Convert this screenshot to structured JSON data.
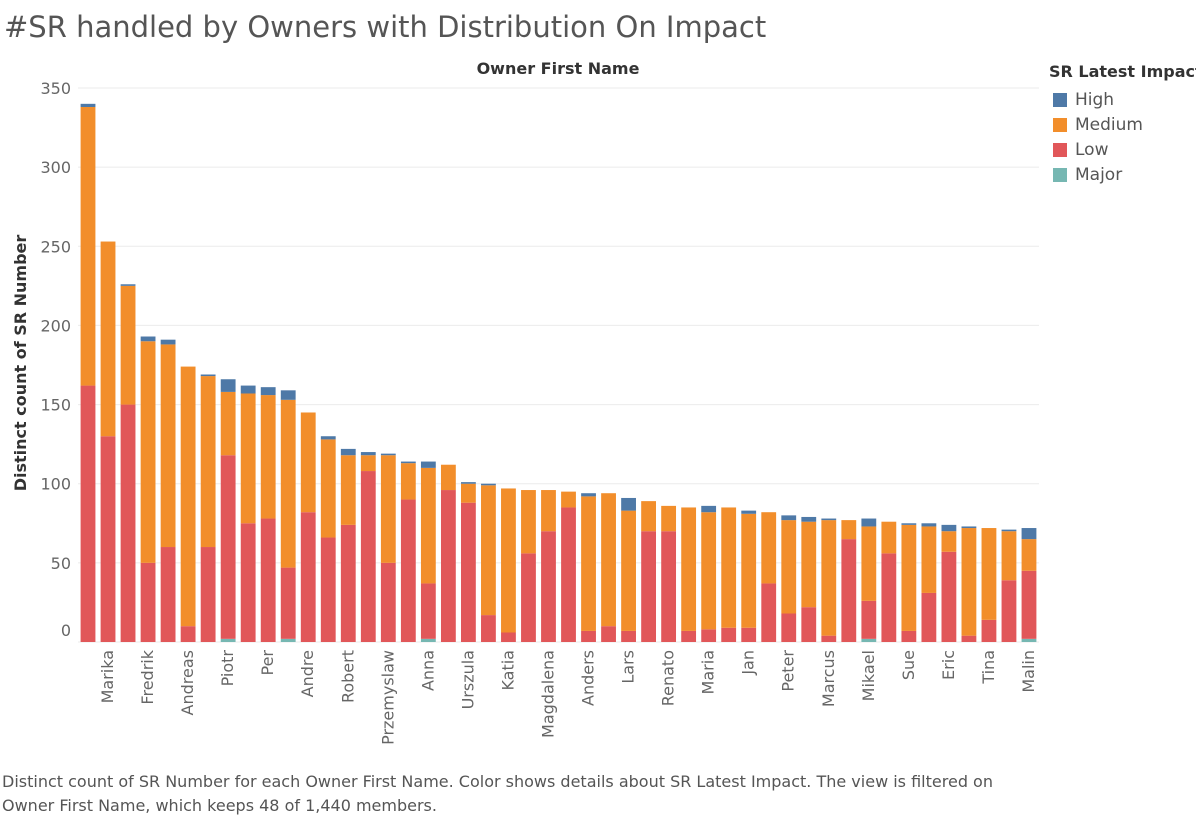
{
  "title": "#SR handled by Owners with Distribution On Impact",
  "caption": "Distinct count of SR Number for each Owner First Name.  Color shows details about SR Latest Impact. The view is filtered on Owner First Name, which keeps 48 of 1,440 members.",
  "legend": {
    "title": "SR Latest Impact",
    "items": [
      {
        "label": "High",
        "color": "#4e79a7"
      },
      {
        "label": "Medium",
        "color": "#f28e2b"
      },
      {
        "label": "Low",
        "color": "#e15759"
      },
      {
        "label": "Major",
        "color": "#76b7b2"
      }
    ]
  },
  "chart_data": {
    "type": "bar",
    "stacked": true,
    "title": "#SR handled by Owners with Distribution On Impact",
    "column_header": "Owner First Name",
    "ylabel": "Distinct count of SR Number",
    "ylim": [
      0,
      350
    ],
    "yticks": [
      0,
      50,
      100,
      150,
      200,
      250,
      300,
      350
    ],
    "grid": true,
    "legend_position": "right",
    "categories": [
      "",
      "Marika",
      "",
      "Fredrik",
      "",
      "Andreas",
      "",
      "Piotr",
      "",
      "Per",
      "",
      "Andre",
      "",
      "Robert",
      "",
      "Przemyslaw",
      "",
      "Anna",
      "",
      "Urszula",
      "",
      "Katia",
      "",
      "Magdalena",
      "",
      "Anders",
      "",
      "Lars",
      "",
      "Renato",
      "",
      "Maria",
      "",
      "Jan",
      "",
      "Peter",
      "",
      "Marcus",
      "",
      "Mikael",
      "",
      "Sue",
      "",
      "Eric",
      "",
      "Tina",
      "",
      "Malin"
    ],
    "series": [
      {
        "name": "Major",
        "color": "#76b7b2",
        "values": [
          0,
          0,
          0,
          0,
          0,
          0,
          0,
          2,
          0,
          0,
          2,
          0,
          0,
          0,
          0,
          0,
          0,
          2,
          0,
          0,
          0,
          0,
          0,
          0,
          0,
          0,
          0,
          0,
          0,
          0,
          0,
          0,
          0,
          0,
          0,
          0,
          0,
          0,
          0,
          2,
          0,
          0,
          0,
          0,
          0,
          0,
          0,
          2
        ]
      },
      {
        "name": "Low",
        "color": "#e15759",
        "values": [
          162,
          130,
          150,
          50,
          60,
          10,
          60,
          116,
          75,
          78,
          45,
          82,
          66,
          74,
          108,
          50,
          90,
          35,
          96,
          88,
          17,
          6,
          56,
          70,
          85,
          7,
          10,
          7,
          70,
          70,
          7,
          8,
          9,
          9,
          37,
          18,
          22,
          4,
          65,
          24,
          56,
          7,
          31,
          57,
          4,
          14,
          39,
          43
        ]
      },
      {
        "name": "Medium",
        "color": "#f28e2b",
        "values": [
          176,
          123,
          75,
          140,
          128,
          164,
          108,
          40,
          82,
          78,
          106,
          63,
          62,
          44,
          10,
          68,
          23,
          73,
          16,
          12,
          82,
          91,
          40,
          26,
          10,
          85,
          84,
          76,
          19,
          16,
          78,
          74,
          76,
          72,
          45,
          59,
          54,
          73,
          12,
          47,
          20,
          67,
          42,
          13,
          68,
          58,
          31,
          20
        ]
      },
      {
        "name": "High",
        "color": "#4e79a7",
        "values": [
          2,
          0,
          1,
          3,
          3,
          0,
          1,
          8,
          5,
          5,
          6,
          0,
          2,
          4,
          2,
          1,
          1,
          4,
          0,
          1,
          1,
          0,
          0,
          0,
          0,
          2,
          0,
          8,
          0,
          0,
          0,
          4,
          0,
          2,
          0,
          3,
          3,
          1,
          0,
          5,
          0,
          1,
          2,
          4,
          1,
          0,
          1,
          7
        ]
      }
    ]
  }
}
